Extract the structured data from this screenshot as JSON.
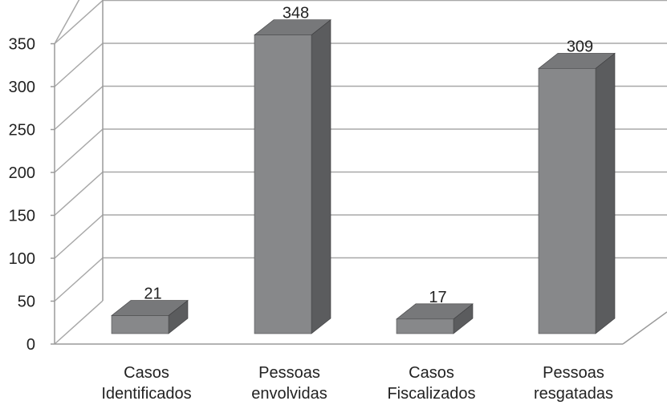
{
  "chart_data": {
    "type": "bar",
    "categories": [
      [
        "Casos",
        "Identificados"
      ],
      [
        "Pessoas",
        "envolvidas"
      ],
      [
        "Casos",
        "Fiscalizados"
      ],
      [
        "Pessoas",
        "resgatadas"
      ]
    ],
    "values": [
      21,
      348,
      17,
      309
    ],
    "data_labels": [
      "21",
      "348",
      "17",
      "309"
    ],
    "y_ticks": [
      "0",
      "50",
      "100",
      "150",
      "200",
      "250",
      "300",
      "350"
    ],
    "ylim": [
      0,
      350
    ],
    "grid": true,
    "style": "3d-column",
    "colors": {
      "bar_front": "#87888a",
      "bar_top": "#77787a",
      "bar_side": "#5b5c5e",
      "gridline": "#a8a8a8",
      "axis": "#9a9a9a"
    }
  }
}
